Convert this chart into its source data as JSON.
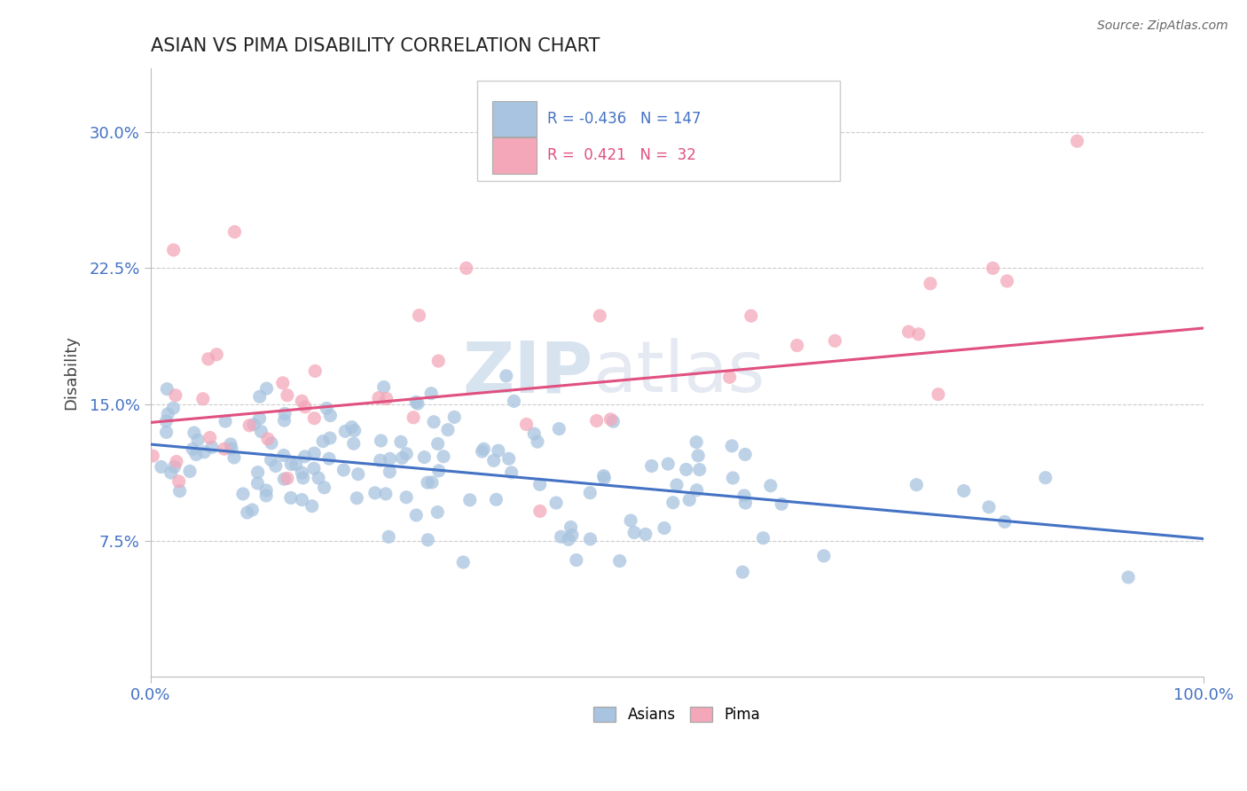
{
  "title": "ASIAN VS PIMA DISABILITY CORRELATION CHART",
  "source": "Source: ZipAtlas.com",
  "ylabel": "Disability",
  "xlim": [
    0.0,
    1.0
  ],
  "ylim": [
    0.0,
    0.335
  ],
  "yticks": [
    0.075,
    0.15,
    0.225,
    0.3
  ],
  "ytick_labels": [
    "7.5%",
    "15.0%",
    "22.5%",
    "30.0%"
  ],
  "xticks": [
    0.0,
    1.0
  ],
  "xtick_labels": [
    "0.0%",
    "100.0%"
  ],
  "asian_color": "#a8c4e0",
  "pima_color": "#f4a7b9",
  "asian_line_color": "#4472c4",
  "pima_line_color": "#e05080",
  "watermark_text": "ZIPatlas",
  "background_color": "#ffffff",
  "grid_color": "#cccccc",
  "asian_trend_y0": 0.128,
  "asian_trend_y1": 0.076,
  "pima_trend_y0": 0.14,
  "pima_trend_y1": 0.192
}
